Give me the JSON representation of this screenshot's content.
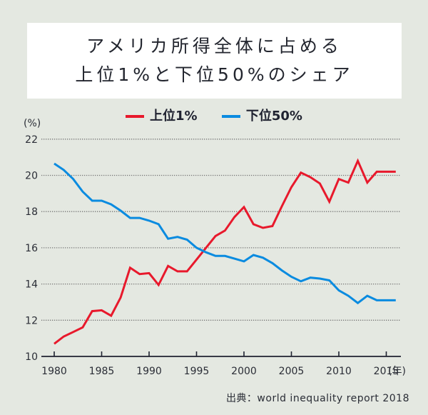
{
  "title": {
    "line1": "アメリカ所得全体に占める",
    "line2": "上位1%と下位50%のシェア"
  },
  "source": "出典：world inequality report 2018",
  "colors": {
    "top1": "#e8192c",
    "bottom50": "#0a8be0",
    "background": "#e4e8e1"
  },
  "chart_data": {
    "type": "line",
    "title": "アメリカ所得全体に占める上位1%と下位50%のシェア",
    "xlabel": "(年)",
    "ylabel": "(%)",
    "ylim": [
      10,
      22
    ],
    "xlim": [
      1980,
      2016
    ],
    "yticks": [
      10,
      12,
      14,
      16,
      18,
      20,
      22
    ],
    "xticks": [
      1980,
      1985,
      1990,
      1995,
      2000,
      2005,
      2010,
      2015
    ],
    "grid": "horizontal dotted",
    "legend_position": "top-center",
    "x": [
      1980,
      1981,
      1982,
      1983,
      1984,
      1985,
      1986,
      1987,
      1988,
      1989,
      1990,
      1991,
      1992,
      1993,
      1994,
      1995,
      1996,
      1997,
      1998,
      1999,
      2000,
      2001,
      2002,
      2003,
      2004,
      2005,
      2006,
      2007,
      2008,
      2009,
      2010,
      2011,
      2012,
      2013,
      2014,
      2015,
      2016
    ],
    "series": [
      {
        "name": "上位1%",
        "color": "#e8192c",
        "values": [
          10.7,
          11.1,
          11.35,
          11.6,
          12.5,
          12.55,
          12.25,
          13.25,
          14.9,
          14.55,
          14.6,
          13.95,
          15.0,
          14.7,
          14.7,
          15.35,
          16.0,
          16.65,
          16.95,
          17.7,
          18.25,
          17.3,
          17.1,
          17.2,
          18.3,
          19.35,
          20.15,
          19.9,
          19.55,
          18.55,
          19.8,
          19.6,
          20.8,
          19.6,
          20.2,
          20.2,
          20.2
        ]
      },
      {
        "name": "下位50%",
        "color": "#0a8be0",
        "values": [
          20.65,
          20.3,
          19.8,
          19.1,
          18.6,
          18.6,
          18.4,
          18.05,
          17.65,
          17.65,
          17.5,
          17.3,
          16.5,
          16.6,
          16.45,
          16.0,
          15.75,
          15.55,
          15.55,
          15.4,
          15.25,
          15.6,
          15.45,
          15.15,
          14.75,
          14.4,
          14.15,
          14.35,
          14.3,
          14.2,
          13.65,
          13.35,
          12.95,
          13.35,
          13.1,
          13.1,
          13.1
        ]
      }
    ]
  }
}
